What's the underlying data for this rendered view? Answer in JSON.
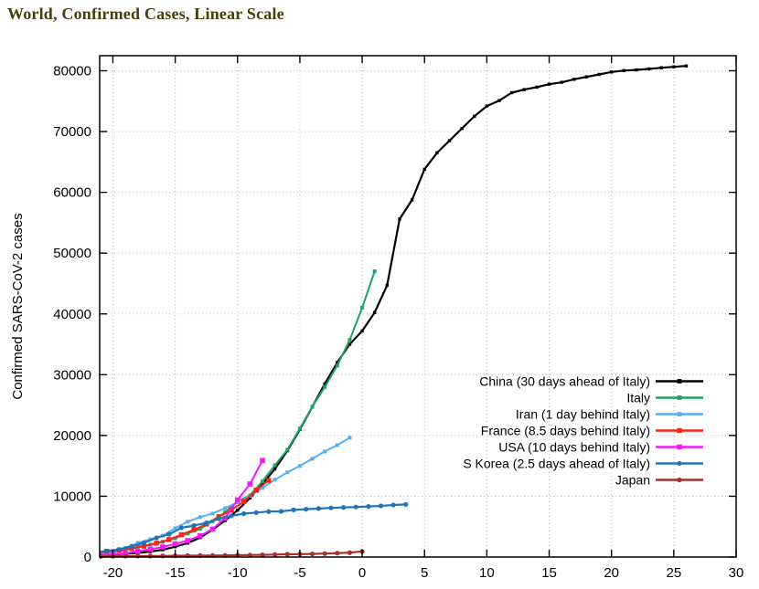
{
  "title": "World, Confirmed Cases, Linear Scale",
  "colors": {
    "title_text": "#4b3a0a",
    "grid": "#bdbdbd",
    "axis": "#000000",
    "background": "#ffffff"
  },
  "chart_data": {
    "type": "line",
    "title": "World, Confirmed Cases, Linear Scale",
    "xlabel": "",
    "ylabel": "Confirmed SARS-CoV-2 cases",
    "xlim": [
      -21.06,
      30
    ],
    "ylim": [
      0,
      82480
    ],
    "x_ticks": [
      -20,
      -15,
      -10,
      -5,
      0,
      5,
      10,
      15,
      20,
      25,
      30
    ],
    "y_ticks": [
      0,
      10000,
      20000,
      30000,
      40000,
      50000,
      60000,
      70000,
      80000
    ],
    "grid": true,
    "legend_position": "inside-right-center",
    "series": [
      {
        "id": "china",
        "name": "China (30 days ahead of Italy)",
        "color": "#000000",
        "line_width": 2.2,
        "marker": "square",
        "marker_size": 1.7,
        "points": [
          [
            -21,
            300
          ],
          [
            -20,
            420
          ],
          [
            -19,
            550
          ],
          [
            -18,
            650
          ],
          [
            -17,
            900
          ],
          [
            -16,
            1200
          ],
          [
            -15,
            1700
          ],
          [
            -14,
            2300
          ],
          [
            -13,
            3200
          ],
          [
            -12,
            4500
          ],
          [
            -11,
            6000
          ],
          [
            -10,
            7700
          ],
          [
            -9,
            9700
          ],
          [
            -8,
            12000
          ],
          [
            -7,
            14500
          ],
          [
            -6,
            17500
          ],
          [
            -5,
            21000
          ],
          [
            -4,
            24700
          ],
          [
            -3,
            28500
          ],
          [
            -2,
            32000
          ],
          [
            -1,
            35000
          ],
          [
            0,
            37200
          ],
          [
            1,
            40235
          ],
          [
            2,
            44700
          ],
          [
            3,
            55600
          ],
          [
            4,
            58760
          ],
          [
            5,
            63800
          ],
          [
            6,
            66500
          ],
          [
            7,
            68500
          ],
          [
            8,
            70500
          ],
          [
            9,
            72500
          ],
          [
            10,
            74200
          ],
          [
            11,
            75100
          ],
          [
            12,
            76400
          ],
          [
            13,
            76900
          ],
          [
            14,
            77300
          ],
          [
            15,
            77800
          ],
          [
            16,
            78100
          ],
          [
            17,
            78600
          ],
          [
            18,
            79000
          ],
          [
            19,
            79400
          ],
          [
            20,
            79800
          ],
          [
            21,
            80030
          ],
          [
            22,
            80150
          ],
          [
            23,
            80300
          ],
          [
            24,
            80500
          ],
          [
            25,
            80650
          ],
          [
            26,
            80790
          ]
        ]
      },
      {
        "id": "italy",
        "name": "Italy",
        "color": "#22a266",
        "line_width": 2,
        "marker": "square",
        "marker_size": 2,
        "points": [
          [
            -21,
            655
          ],
          [
            -20,
            888
          ],
          [
            -19,
            1128
          ],
          [
            -18,
            1694
          ],
          [
            -17,
            2036
          ],
          [
            -16,
            2502
          ],
          [
            -15,
            3089
          ],
          [
            -14,
            3858
          ],
          [
            -13,
            4636
          ],
          [
            -12,
            5883
          ],
          [
            -11,
            7375
          ],
          [
            -10,
            9172
          ],
          [
            -9,
            10149
          ],
          [
            -8,
            12462
          ],
          [
            -7,
            15113
          ],
          [
            -6,
            17660
          ],
          [
            -5,
            21157
          ],
          [
            -4,
            24747
          ],
          [
            -3,
            27980
          ],
          [
            -2,
            31506
          ],
          [
            -1,
            35713
          ],
          [
            0,
            41035
          ],
          [
            1,
            47021
          ]
        ]
      },
      {
        "id": "iran",
        "name": "Iran (1 day behind Italy)",
        "color": "#57aef0",
        "line_width": 2,
        "marker": "square",
        "marker_size": 2,
        "points": [
          [
            -21,
            593
          ],
          [
            -20,
            978
          ],
          [
            -19,
            1501
          ],
          [
            -18,
            2336
          ],
          [
            -17,
            2922
          ],
          [
            -16,
            3513
          ],
          [
            -15,
            4747
          ],
          [
            -14,
            5823
          ],
          [
            -13,
            6566
          ],
          [
            -12,
            7161
          ],
          [
            -11,
            8042
          ],
          [
            -10,
            9000
          ],
          [
            -9,
            10075
          ],
          [
            -8,
            11364
          ],
          [
            -7,
            12729
          ],
          [
            -6,
            13938
          ],
          [
            -5,
            14991
          ],
          [
            -4,
            16169
          ],
          [
            -3,
            17361
          ],
          [
            -2,
            18407
          ],
          [
            -1,
            19644
          ]
        ]
      },
      {
        "id": "france",
        "name": "France (8.5 days behind Italy)",
        "color": "#f92313",
        "line_width": 2,
        "marker": "square",
        "marker_size": 2.7,
        "points": [
          [
            -21.5,
            653
          ],
          [
            -20.5,
            949
          ],
          [
            -19.5,
            1126
          ],
          [
            -18.5,
            1412
          ],
          [
            -17.5,
            1784
          ],
          [
            -16.5,
            2281
          ],
          [
            -15.5,
            2876
          ],
          [
            -14.5,
            3667
          ],
          [
            -13.5,
            4499
          ],
          [
            -12.5,
            5423
          ],
          [
            -11.5,
            6633
          ],
          [
            -10.5,
            7730
          ],
          [
            -9.5,
            9134
          ],
          [
            -8.5,
            10995
          ],
          [
            -7.5,
            12612
          ]
        ]
      },
      {
        "id": "usa",
        "name": "USA (10 days behind Italy)",
        "color": "#fa14fa",
        "line_width": 2,
        "marker": "square",
        "marker_size": 2.8,
        "points": [
          [
            -21,
            320
          ],
          [
            -20,
            440
          ],
          [
            -19,
            600
          ],
          [
            -18,
            960
          ],
          [
            -17,
            1280
          ],
          [
            -16,
            1660
          ],
          [
            -15,
            2180
          ],
          [
            -14,
            2700
          ],
          [
            -13,
            3500
          ],
          [
            -12,
            4600
          ],
          [
            -11,
            6400
          ],
          [
            -10,
            9400
          ],
          [
            -9,
            12020
          ],
          [
            -8,
            15880
          ]
        ]
      },
      {
        "id": "s-korea",
        "name": "S Korea (2.5 days ahead of Italy)",
        "color": "#2474b5",
        "line_width": 2.2,
        "marker": "circle",
        "marker_size": 2.6,
        "points": [
          [
            -21.5,
            833
          ],
          [
            -20.5,
            977
          ],
          [
            -19.5,
            1261
          ],
          [
            -18.5,
            1766
          ],
          [
            -17.5,
            2337
          ],
          [
            -16.5,
            3150
          ],
          [
            -15.5,
            3736
          ],
          [
            -14.5,
            4812
          ],
          [
            -13.5,
            5186
          ],
          [
            -12.5,
            5621
          ],
          [
            -11.5,
            6284
          ],
          [
            -10.5,
            6767
          ],
          [
            -9.5,
            7134
          ],
          [
            -8.5,
            7314
          ],
          [
            -7.5,
            7478
          ],
          [
            -6.5,
            7513
          ],
          [
            -5.5,
            7755
          ],
          [
            -4.5,
            7869
          ],
          [
            -3.5,
            7979
          ],
          [
            -2.5,
            8086
          ],
          [
            -1.5,
            8162
          ],
          [
            -0.5,
            8236
          ],
          [
            0.5,
            8320
          ],
          [
            1.5,
            8413
          ],
          [
            2.5,
            8565
          ],
          [
            3.5,
            8652
          ]
        ]
      },
      {
        "id": "japan",
        "name": "Japan",
        "color": "#a33029",
        "line_width": 2.2,
        "marker": "circle",
        "marker_size": 2.6,
        "points": [
          [
            -21,
            105
          ],
          [
            -20,
            132
          ],
          [
            -19,
            146
          ],
          [
            -18,
            157
          ],
          [
            -17,
            164
          ],
          [
            -16,
            186
          ],
          [
            -15,
            210
          ],
          [
            -14,
            230
          ],
          [
            -13,
            239
          ],
          [
            -12,
            254
          ],
          [
            -11,
            268
          ],
          [
            -10,
            299
          ],
          [
            -9,
            331
          ],
          [
            -8,
            361
          ],
          [
            -7,
            408
          ],
          [
            -6,
            455
          ],
          [
            -5,
            488
          ],
          [
            -4,
            514
          ],
          [
            -3,
            568
          ],
          [
            -2,
            639
          ],
          [
            -1,
            716
          ],
          [
            0,
            924
          ]
        ]
      }
    ]
  }
}
